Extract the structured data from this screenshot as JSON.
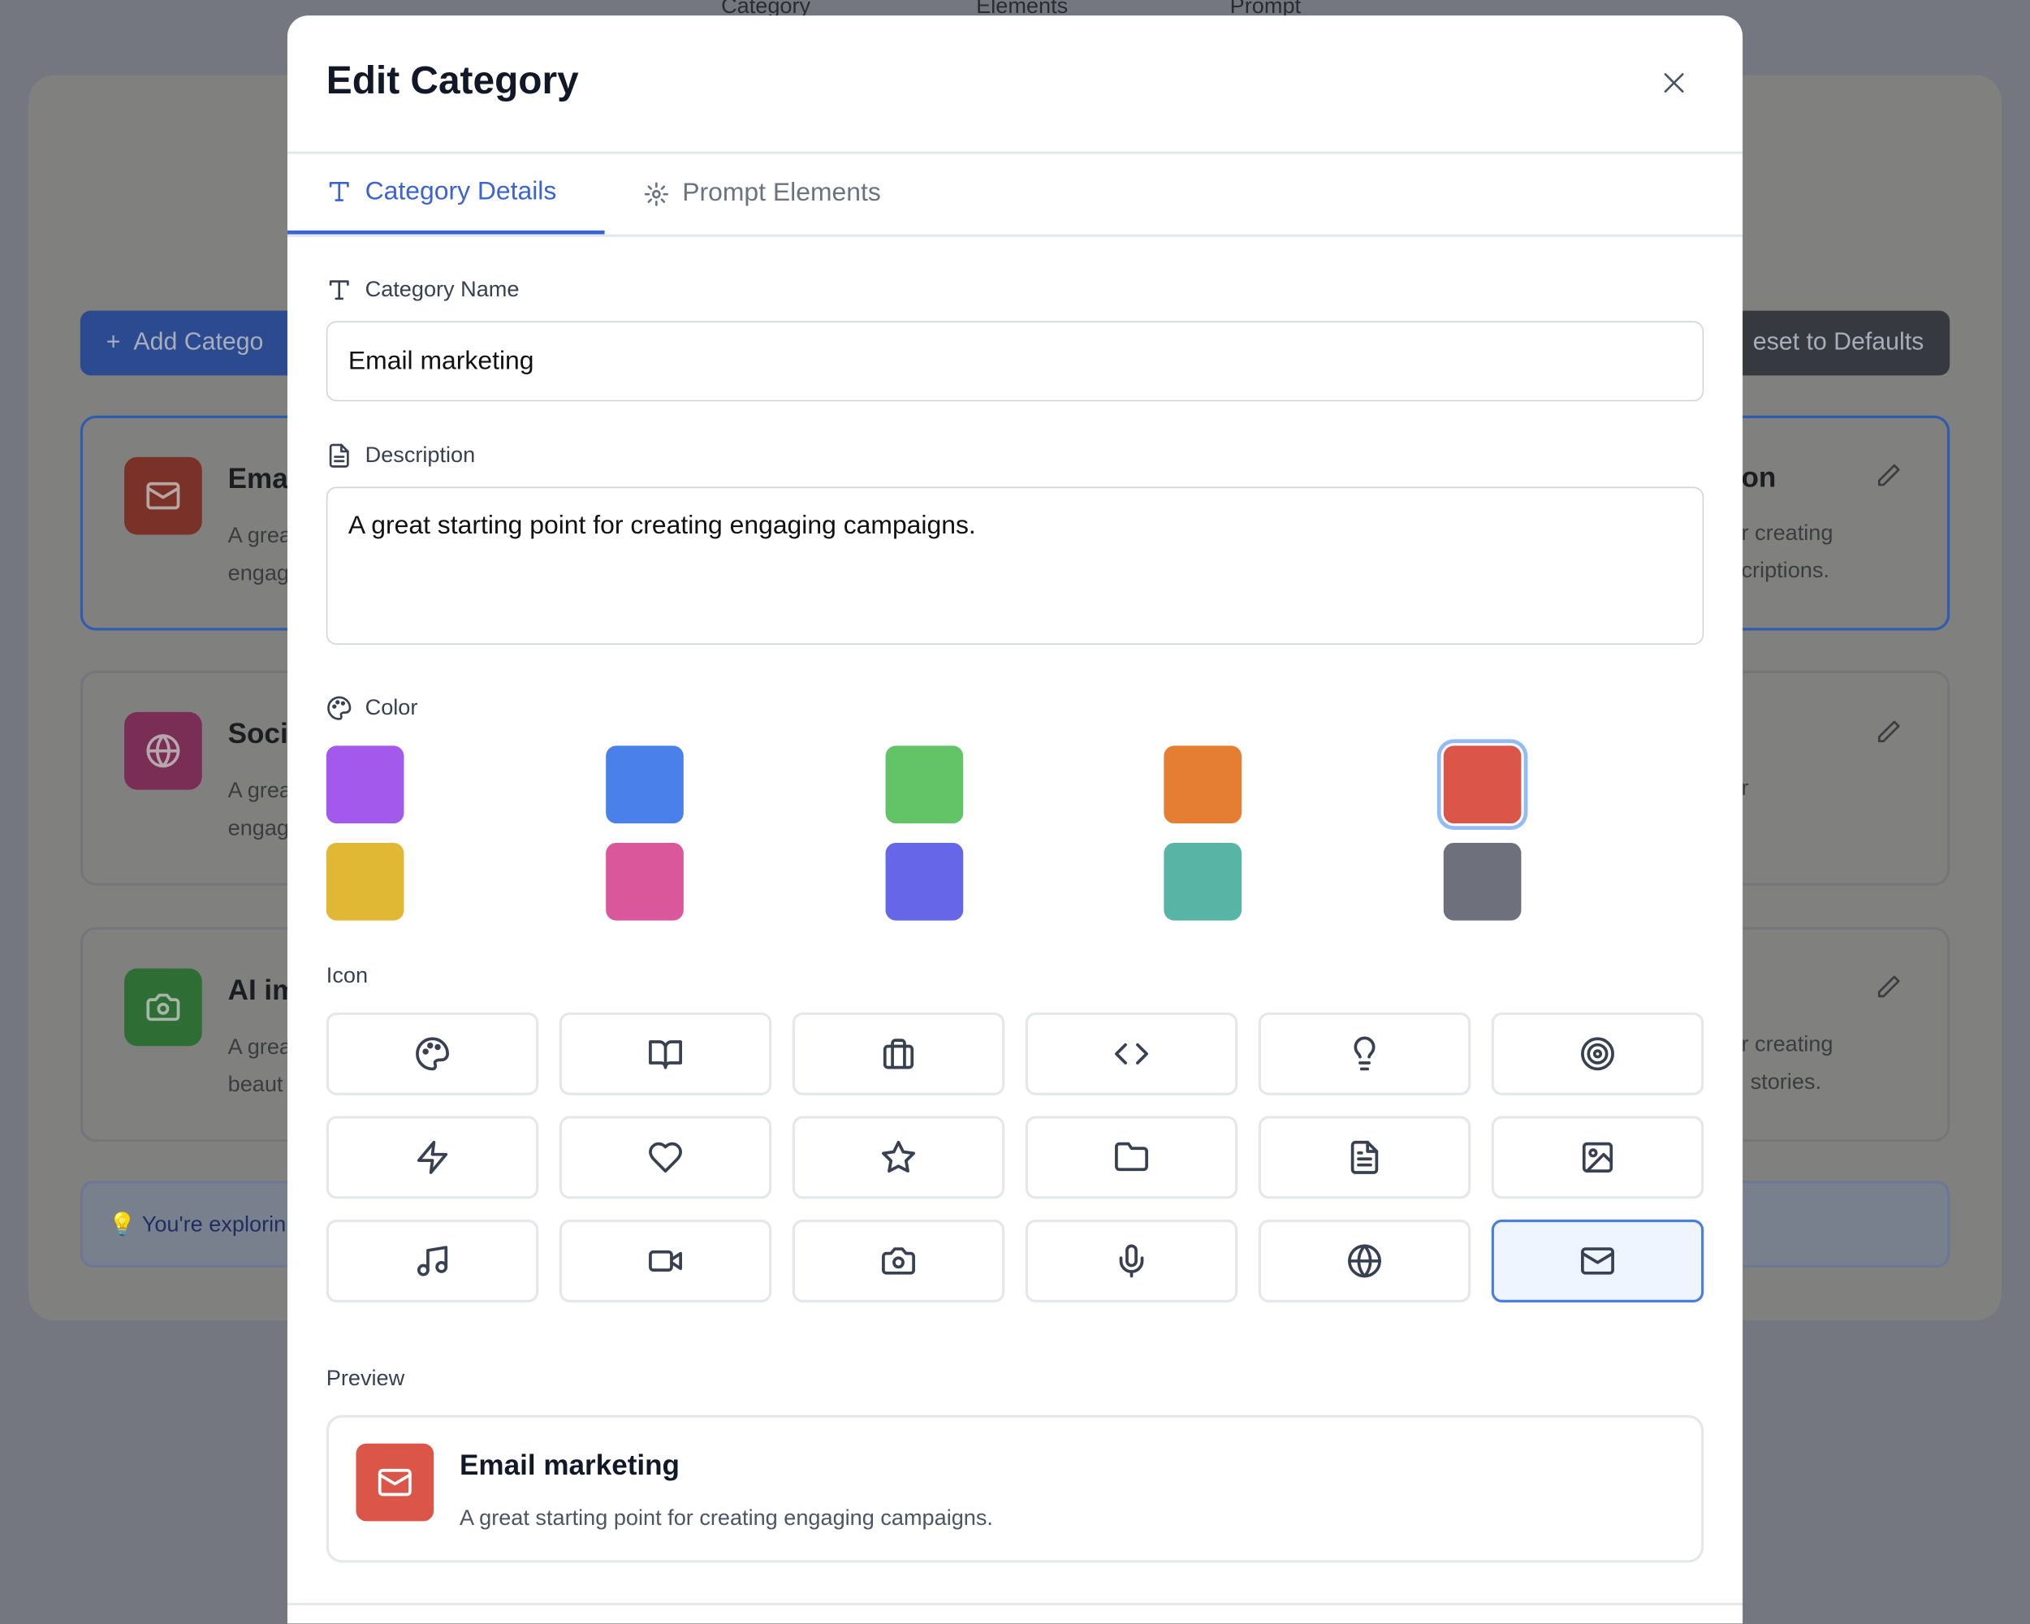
{
  "background": {
    "header_columns": [
      "Category",
      "Elements",
      "Prompt"
    ],
    "add_button": "Add Catego",
    "reset_button": "eset to Defaults",
    "cards": [
      {
        "title": "Emai",
        "desc1": "A grea",
        "desc2": "engag",
        "color": "#7a3228",
        "icon": "mail-icon"
      },
      {
        "title": "Soci",
        "desc1": "A grea",
        "desc2": "engag",
        "color": "#7a2e55",
        "icon": "globe-icon"
      },
      {
        "title": "AI im",
        "desc1": "A grea",
        "desc2": "beaut",
        "color": "#2e6e35",
        "icon": "camera-icon"
      }
    ],
    "right_cards": [
      {
        "title": "on",
        "desc1": "r creating",
        "desc2": "criptions."
      },
      {
        "title": "",
        "desc1": "r",
        "desc2": ""
      },
      {
        "title": "",
        "desc1": "r creating",
        "desc2": "stories."
      }
    ],
    "info_text": "You're explorin"
  },
  "modal": {
    "title": "Edit Category",
    "tabs": [
      {
        "label": "Category Details",
        "active": true,
        "icon": "type-icon"
      },
      {
        "label": "Prompt Elements",
        "active": false,
        "icon": "gear-icon"
      }
    ],
    "name_label": "Category Name",
    "name_value": "Email marketing",
    "description_label": "Description",
    "description_value": "A great starting point for creating engaging campaigns.",
    "color_label": "Color",
    "colors": [
      "#a259ec",
      "#4a80ea",
      "#62c466",
      "#e57d33",
      "#db5549",
      "#e0b833",
      "#d9579a",
      "#6666e8",
      "#58b5a5",
      "#6e717c"
    ],
    "selected_color": "#db5549",
    "icon_label": "Icon",
    "icons": [
      "palette",
      "book-open",
      "briefcase",
      "code",
      "lightbulb",
      "target",
      "zap",
      "heart",
      "star",
      "folder",
      "file-text",
      "image",
      "music",
      "video",
      "camera",
      "mic",
      "globe",
      "mail"
    ],
    "selected_icon": "mail",
    "preview_label": "Preview",
    "preview": {
      "title": "Email marketing",
      "desc": "A great starting point for creating engaging campaigns."
    },
    "accent": "#3b63d1"
  }
}
